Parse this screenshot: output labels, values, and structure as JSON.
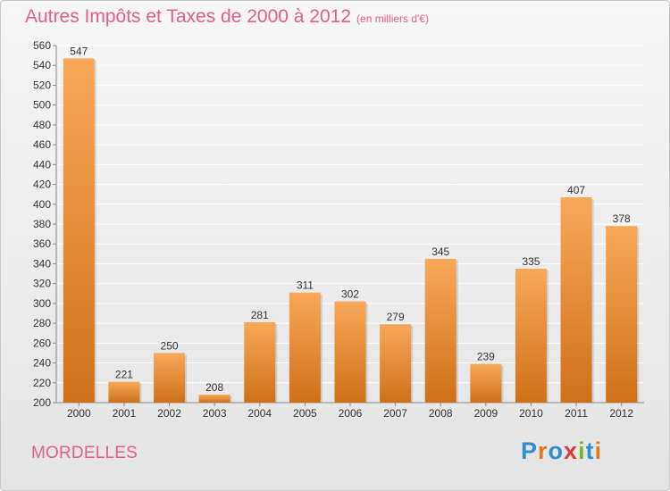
{
  "header": {
    "title": "Autres Impôts et Taxes de 2000 à 2012",
    "unit": "(en milliers d'€)"
  },
  "footer": {
    "commune": "MORDELLES",
    "logo": [
      "P",
      "r",
      "o",
      "x",
      "i",
      "t",
      "i"
    ],
    "logo_colors": [
      "#2f8fd1",
      "#e07a1f",
      "#2f8fd1",
      "#d93b3b",
      "#7ab829",
      "#2f8fd1",
      "#e07a1f"
    ]
  },
  "colors": {
    "title": "#e35f86",
    "bar_top": "#f8a858",
    "bar_bottom": "#d07018",
    "grid": "#ffffff"
  },
  "chart_data": {
    "type": "bar",
    "categories": [
      "2000",
      "2001",
      "2002",
      "2003",
      "2004",
      "2005",
      "2006",
      "2007",
      "2008",
      "2009",
      "2010",
      "2011",
      "2012"
    ],
    "values": [
      547,
      221,
      250,
      208,
      281,
      311,
      302,
      279,
      345,
      239,
      335,
      407,
      378
    ],
    "data_labels": [
      "547",
      "221",
      "250",
      "208",
      "281",
      "311",
      "302",
      "279",
      "345",
      "239",
      "335",
      "407",
      "378"
    ],
    "ylim": [
      200,
      560
    ],
    "yticks": [
      200,
      220,
      240,
      260,
      280,
      300,
      320,
      340,
      360,
      380,
      400,
      420,
      440,
      460,
      480,
      500,
      520,
      540,
      560
    ],
    "grid": true,
    "legend": "none"
  }
}
